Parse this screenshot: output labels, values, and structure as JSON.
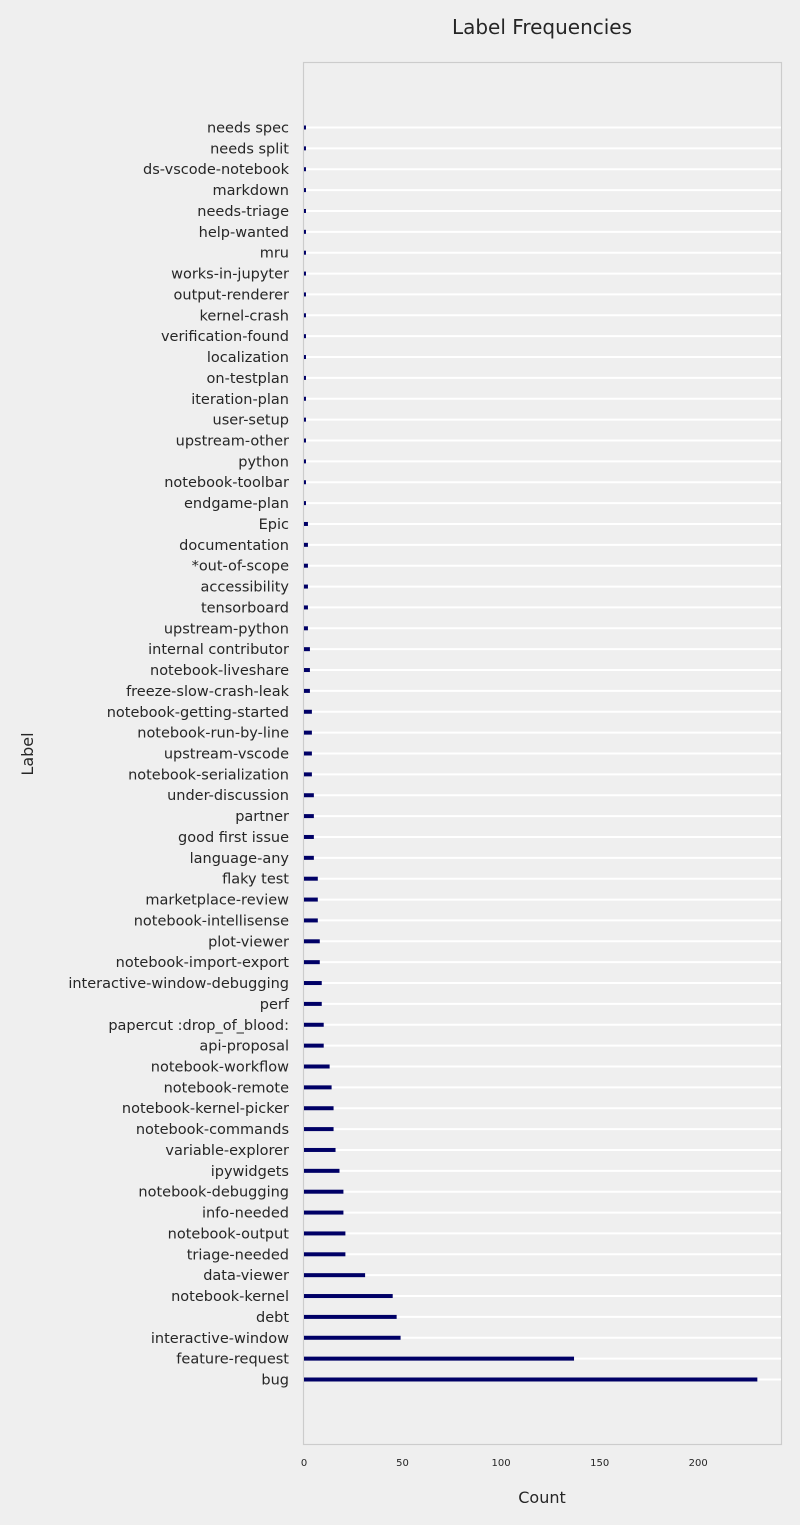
{
  "chart_data": {
    "type": "bar",
    "orientation": "horizontal",
    "title": "Label Frequencies",
    "xlabel": "Count",
    "ylabel": "Label",
    "xlim": [
      0,
      242
    ],
    "xticks": [
      0,
      50,
      100,
      150,
      200
    ],
    "grid": "horizontal",
    "bar_color": "#000066",
    "background_color": "#efefef",
    "categories": [
      "needs spec",
      "needs split",
      "ds-vscode-notebook",
      "markdown",
      "needs-triage",
      "help-wanted",
      "mru",
      "works-in-jupyter",
      "output-renderer",
      "kernel-crash",
      "verification-found",
      "localization",
      "on-testplan",
      "iteration-plan",
      "user-setup",
      "upstream-other",
      "python",
      "notebook-toolbar",
      "endgame-plan",
      "Epic",
      "documentation",
      "*out-of-scope",
      "accessibility",
      "tensorboard",
      "upstream-python",
      "internal contributor",
      "notebook-liveshare",
      "freeze-slow-crash-leak",
      "notebook-getting-started",
      "notebook-run-by-line",
      "upstream-vscode",
      "notebook-serialization",
      "under-discussion",
      "partner",
      "good first issue",
      "language-any",
      "flaky test",
      "marketplace-review",
      "notebook-intellisense",
      "plot-viewer",
      "notebook-import-export",
      "interactive-window-debugging",
      "perf",
      "papercut :drop_of_blood:",
      "api-proposal",
      "notebook-workflow",
      "notebook-remote",
      "notebook-kernel-picker",
      "notebook-commands",
      "variable-explorer",
      "ipywidgets",
      "notebook-debugging",
      "info-needed",
      "notebook-output",
      "triage-needed",
      "data-viewer",
      "notebook-kernel",
      "debt",
      "interactive-window",
      "feature-request",
      "bug"
    ],
    "values": [
      1,
      1,
      1,
      1,
      1,
      1,
      1,
      1,
      1,
      1,
      1,
      1,
      1,
      1,
      1,
      1,
      1,
      1,
      1,
      2,
      2,
      2,
      2,
      2,
      2,
      3,
      3,
      3,
      4,
      4,
      4,
      4,
      5,
      5,
      5,
      5,
      7,
      7,
      7,
      8,
      8,
      9,
      9,
      10,
      10,
      13,
      14,
      15,
      15,
      16,
      18,
      20,
      20,
      21,
      21,
      31,
      45,
      47,
      49,
      137,
      230
    ]
  }
}
